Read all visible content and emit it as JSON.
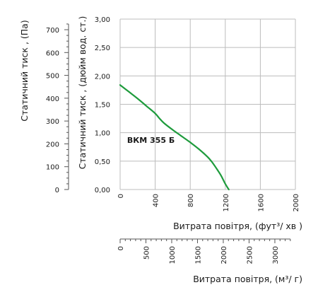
{
  "chart_data": {
    "type": "line",
    "series": [
      {
        "name": "ВКМ 355 Б",
        "color": "#1e9b3c",
        "x": [
          0,
          100,
          200,
          300,
          400,
          450,
          500,
          600,
          700,
          800,
          900,
          1000,
          1050,
          1100,
          1150,
          1200,
          1240
        ],
        "y": [
          1.84,
          1.72,
          1.6,
          1.47,
          1.34,
          1.25,
          1.17,
          1.05,
          0.94,
          0.83,
          0.71,
          0.57,
          0.48,
          0.37,
          0.25,
          0.1,
          0.0
        ]
      }
    ],
    "primary": {
      "xlabel_main": "Витрата повітря",
      "xlabel_unit": ", (фут³/ хв )",
      "ylabel": "Статичний тиск , (дюйм вод. ст.)",
      "xlim": [
        0,
        2000
      ],
      "ylim": [
        0,
        3
      ],
      "x_ticks": [
        "0",
        "400",
        "800",
        "1200",
        "1600",
        "2000"
      ],
      "y_ticks": [
        "0,00",
        "0,50",
        "1,00",
        "1,50",
        "2,00",
        "2,50",
        "3,00"
      ],
      "grid": true
    },
    "secondary_y": {
      "label": "Статичний тиск , (Па)",
      "ticks": [
        "0",
        "100",
        "200",
        "300",
        "400",
        "500",
        "600",
        "700"
      ],
      "range": [
        0,
        746.5
      ]
    },
    "secondary_x": {
      "label_main": "Витрата повітря",
      "label_unit": ", (м³/ г)",
      "ticks": [
        "0",
        "500",
        "1000",
        "1500",
        "2000",
        "2500",
        "3000"
      ],
      "range": [
        0,
        3398
      ]
    }
  }
}
